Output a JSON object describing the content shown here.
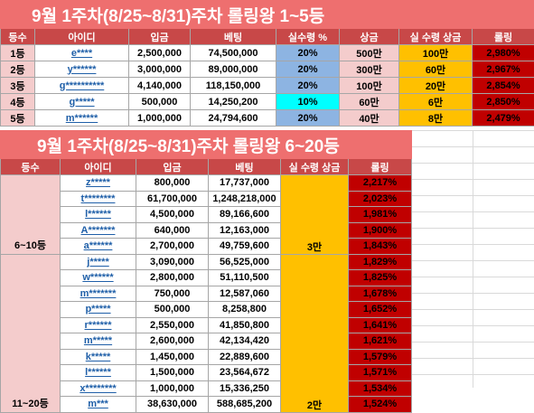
{
  "top": {
    "title": "9월 1주차(8/25~8/31)주차 롤링왕 1~5등",
    "headers": [
      "등수",
      "아이디",
      "입금",
      "베팅",
      "실수령 %",
      "상금",
      "실 수령 상금",
      "롤링"
    ],
    "rows": [
      {
        "rank": "1등",
        "id": "e****",
        "deposit": "2,500,000",
        "bet": "74,500,000",
        "rate": "20%",
        "prize": "500만",
        "real": "100만",
        "rolling": "2,980%"
      },
      {
        "rank": "2등",
        "id": "y******",
        "deposit": "3,000,000",
        "bet": "89,000,000",
        "rate": "20%",
        "prize": "300만",
        "real": "60만",
        "rolling": "2,967%"
      },
      {
        "rank": "3등",
        "id": "g**********",
        "deposit": "4,140,000",
        "bet": "118,150,000",
        "rate": "20%",
        "prize": "100만",
        "real": "20만",
        "rolling": "2,854%"
      },
      {
        "rank": "4등",
        "id": "g*****",
        "deposit": "500,000",
        "bet": "14,250,200",
        "rate": "10%",
        "prize": "60만",
        "real": "6만",
        "rolling": "2,850%"
      },
      {
        "rank": "5등",
        "id": "m******",
        "deposit": "1,000,000",
        "bet": "24,794,600",
        "rate": "20%",
        "prize": "40만",
        "real": "8만",
        "rolling": "2,479%"
      }
    ]
  },
  "bottom": {
    "title": "9월 1주차(8/25~8/31)주차 롤링왕 6~20등",
    "headers": [
      "등수",
      "아이디",
      "입금",
      "베팅",
      "실 수령 상금",
      "롤링"
    ],
    "group1": {
      "label": "6~10등",
      "bonus": "3만"
    },
    "group2": {
      "label": "11~20등",
      "bonus": "2만"
    },
    "rows": [
      {
        "id": "z*****",
        "deposit": "800,000",
        "bet": "17,737,000",
        "rolling": "2,217%"
      },
      {
        "id": "t********",
        "deposit": "61,700,000",
        "bet": "1,248,218,000",
        "rolling": "2,023%"
      },
      {
        "id": "l******",
        "deposit": "4,500,000",
        "bet": "89,166,600",
        "rolling": "1,981%"
      },
      {
        "id": "A*******",
        "deposit": "640,000",
        "bet": "12,163,000",
        "rolling": "1,900%"
      },
      {
        "id": "a******",
        "deposit": "2,700,000",
        "bet": "49,759,600",
        "rolling": "1,843%"
      },
      {
        "id": "j*****",
        "deposit": "3,090,000",
        "bet": "56,525,000",
        "rolling": "1,829%"
      },
      {
        "id": "w******",
        "deposit": "2,800,000",
        "bet": "51,110,500",
        "rolling": "1,825%"
      },
      {
        "id": "m*******",
        "deposit": "750,000",
        "bet": "12,587,060",
        "rolling": "1,678%"
      },
      {
        "id": "p*****",
        "deposit": "500,000",
        "bet": "8,258,800",
        "rolling": "1,652%"
      },
      {
        "id": "r******",
        "deposit": "2,550,000",
        "bet": "41,850,800",
        "rolling": "1,641%"
      },
      {
        "id": "m*****",
        "deposit": "2,600,000",
        "bet": "42,134,420",
        "rolling": "1,621%"
      },
      {
        "id": "k*****",
        "deposit": "1,450,000",
        "bet": "22,889,600",
        "rolling": "1,579%"
      },
      {
        "id": "l******",
        "deposit": "1,500,000",
        "bet": "23,564,672",
        "rolling": "1,571%"
      },
      {
        "id": "x********",
        "deposit": "1,000,000",
        "bet": "15,336,250",
        "rolling": "1,534%"
      },
      {
        "id": "m***",
        "deposit": "38,630,000",
        "bet": "588,685,200",
        "rolling": "1,524%"
      }
    ]
  }
}
